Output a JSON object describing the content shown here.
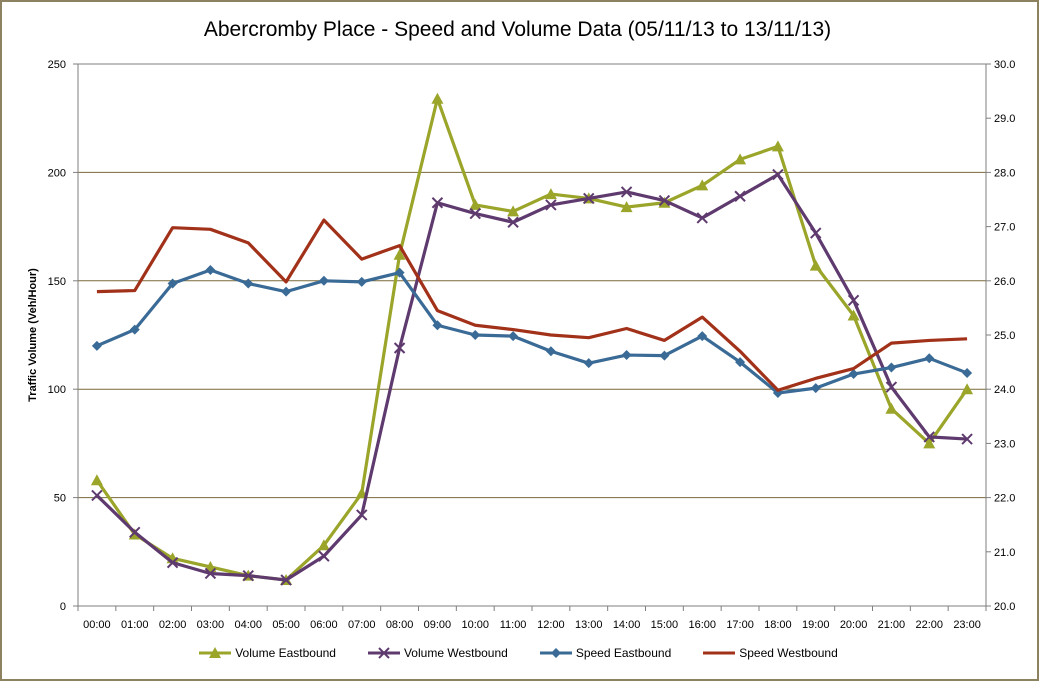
{
  "chart_data": {
    "type": "line",
    "title": "Abercromby Place - Speed and Volume Data (05/11/13 to 13/11/13)",
    "ylabel": "Traffic Volume (Veh/Hour)",
    "ylim": [
      0,
      250
    ],
    "y2lim": [
      20.0,
      30.0
    ],
    "yticks": [
      "0",
      "50",
      "100",
      "150",
      "200",
      "250"
    ],
    "y2ticks": [
      "20.0",
      "21.0",
      "22.0",
      "23.0",
      "24.0",
      "25.0",
      "26.0",
      "27.0",
      "28.0",
      "29.0",
      "30.0"
    ],
    "categories": [
      "00:00",
      "01:00",
      "02:00",
      "03:00",
      "04:00",
      "05:00",
      "06:00",
      "07:00",
      "08:00",
      "09:00",
      "10:00",
      "11:00",
      "12:00",
      "13:00",
      "14:00",
      "15:00",
      "16:00",
      "17:00",
      "18:00",
      "19:00",
      "20:00",
      "21:00",
      "22:00",
      "23:00"
    ],
    "grid": true,
    "legend_position": "bottom",
    "series": [
      {
        "name": "Volume Eastbound",
        "axis": "left",
        "color": "#9aa52a",
        "marker": "triangle",
        "values": [
          58,
          33,
          22,
          18,
          14,
          12,
          28,
          52,
          162,
          234,
          185,
          182,
          190,
          188,
          184,
          186,
          194,
          206,
          212,
          157,
          134,
          91,
          75,
          100
        ]
      },
      {
        "name": "Volume Westbound",
        "axis": "left",
        "color": "#5e3a6e",
        "marker": "x",
        "values": [
          51,
          34,
          20,
          15,
          14,
          12,
          23,
          42,
          119,
          186,
          181,
          177,
          185,
          188,
          191,
          187,
          179,
          189,
          199,
          172,
          141,
          101,
          78,
          77
        ]
      },
      {
        "name": "Speed Eastbound",
        "axis": "right",
        "color": "#3a6a96",
        "marker": "diamond",
        "values": [
          24.8,
          25.1,
          25.95,
          26.2,
          25.95,
          25.8,
          26.0,
          25.98,
          26.15,
          25.18,
          25.0,
          24.98,
          24.7,
          24.48,
          24.63,
          24.62,
          24.98,
          24.5,
          23.93,
          24.02,
          24.28,
          24.4,
          24.57,
          24.3
        ]
      },
      {
        "name": "Speed Westbound",
        "axis": "right",
        "color": "#a2311a",
        "marker": "none",
        "values": [
          25.8,
          25.82,
          26.98,
          26.95,
          26.7,
          25.98,
          27.12,
          26.4,
          26.65,
          25.45,
          25.18,
          25.1,
          25.0,
          24.95,
          25.12,
          24.9,
          25.33,
          24.7,
          23.98,
          24.2,
          24.38,
          24.85,
          24.9,
          24.93
        ]
      }
    ]
  }
}
